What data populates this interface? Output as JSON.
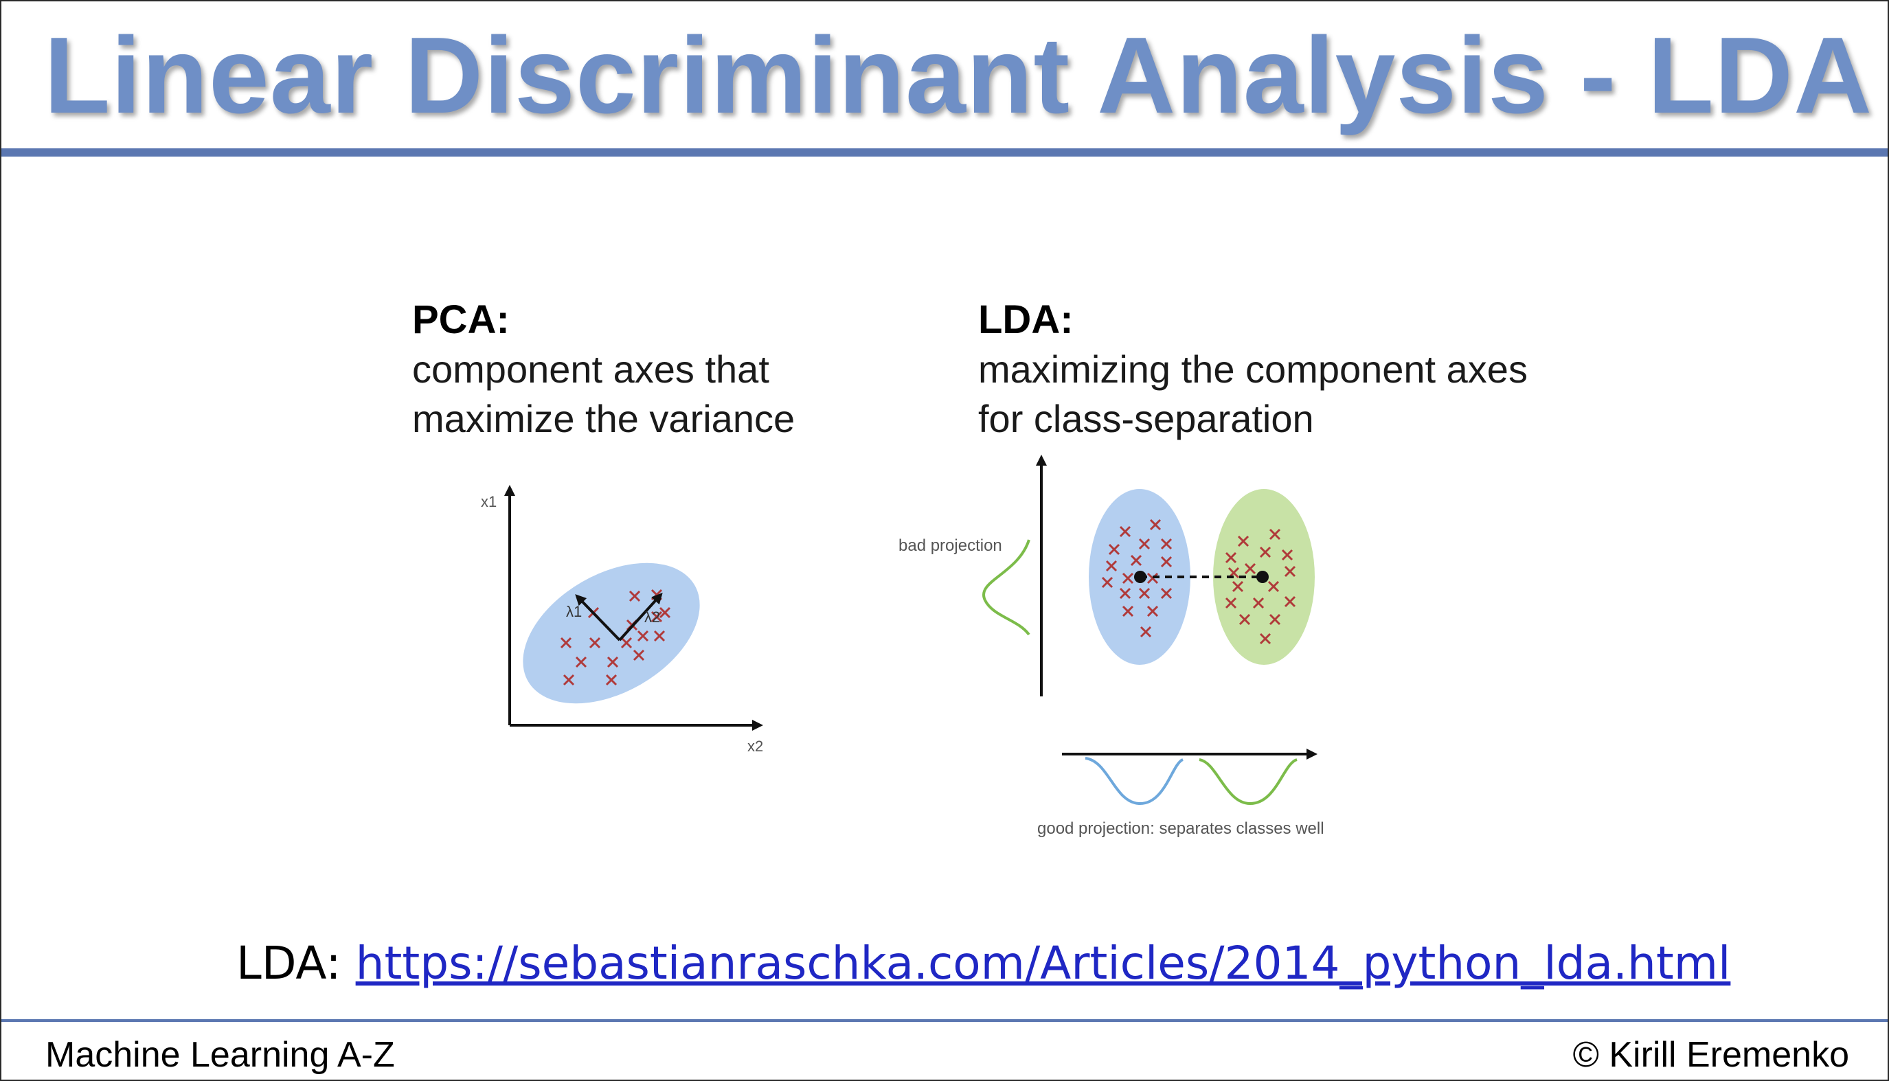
{
  "slide": {
    "title": "Linear Discriminant Analysis - LDA",
    "footer_left": "Machine Learning A-Z",
    "footer_right": "© Kirill Eremenko"
  },
  "pca": {
    "heading": "PCA:",
    "description": "component axes that maximize the variance",
    "x_axis_label": "x2",
    "y_axis_label": "x1",
    "lambda1_label": "λ1",
    "lambda2_label": "λ2"
  },
  "lda": {
    "heading": "LDA:",
    "description": "maximizing the component axes for class-separation",
    "bad_projection_label": "bad projection",
    "good_projection_label": "good projection: separates classes well"
  },
  "reference": {
    "prefix": "LDA: ",
    "url_text": "https://sebastianraschka.com/Articles/2014_python_lda.html"
  },
  "colors": {
    "title": "#6f8fc6",
    "rule": "#5b77b1",
    "class_blue": "#b4cff0",
    "class_green": "#c8e2a6",
    "marker": "#b03a3a",
    "blue_curve": "#6ea8dc",
    "green_curve": "#7cbc4a",
    "link": "#1f27c4"
  }
}
